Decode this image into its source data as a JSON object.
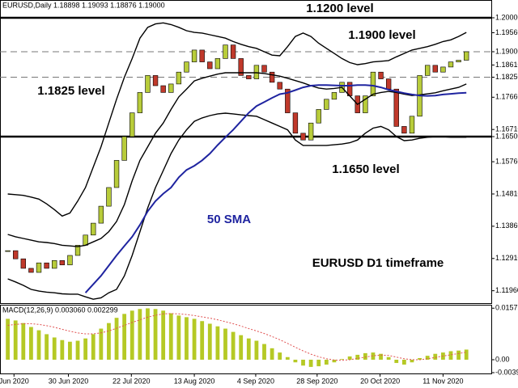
{
  "chart_data": [
    {
      "type": "candlestick",
      "header": "EURUSD,Daily  1.18898 1.19093 1.18876 1.19000",
      "xlim": [
        -1,
        62
      ],
      "xticks": [
        {
          "value": 0.8,
          "label": "Jun 2020"
        },
        {
          "value": 7.8,
          "label": "30 Jun 2020"
        },
        {
          "value": 15.9,
          "label": "22 Jul 2020"
        },
        {
          "value": 24,
          "label": "13 Aug 2020"
        },
        {
          "value": 31.9,
          "label": "4 Sep 2020"
        },
        {
          "value": 39.8,
          "label": "28 Sep 2020"
        },
        {
          "value": 47.9,
          "label": "20 Oct 2020"
        },
        {
          "value": 56,
          "label": "11 Nov 2020"
        }
      ],
      "ylim": [
        1.11595,
        1.20524
      ],
      "yticks": [
        {
          "value": 1.2,
          "label": "1.20000"
        },
        {
          "value": 1.1956,
          "label": "1.19560"
        },
        {
          "value": 1.19,
          "label": "1.19000"
        },
        {
          "value": 1.1861,
          "label": "1.18610"
        },
        {
          "value": 1.1825,
          "label": "1.18250"
        },
        {
          "value": 1.1766,
          "label": "1.17660"
        },
        {
          "value": 1.1671,
          "label": "1.16710"
        },
        {
          "value": 1.165,
          "label": "1.16500"
        },
        {
          "value": 1.1576,
          "label": "1.15760"
        },
        {
          "value": 1.1481,
          "label": "1.14810"
        },
        {
          "value": 1.1386,
          "label": "1.13860"
        },
        {
          "value": 1.1291,
          "label": "1.12910"
        },
        {
          "value": 1.1196,
          "label": "1.11960"
        }
      ],
      "close": [
        1.1314,
        1.129,
        1.1262,
        1.125,
        1.1278,
        1.1262,
        1.1285,
        1.1272,
        1.13,
        1.133,
        1.136,
        1.1395,
        1.1445,
        1.15,
        1.158,
        1.165,
        1.172,
        1.178,
        1.183,
        1.18,
        1.178,
        1.1805,
        1.184,
        1.187,
        1.1905,
        1.187,
        1.185,
        1.188,
        1.192,
        1.188,
        1.183,
        1.182,
        1.186,
        1.184,
        1.181,
        1.179,
        1.172,
        1.166,
        1.164,
        1.169,
        1.173,
        1.176,
        1.178,
        1.181,
        1.177,
        1.172,
        1.177,
        1.184,
        1.182,
        1.179,
        1.168,
        1.166,
        1.171,
        1.183,
        1.186,
        1.184,
        1.1855,
        1.187,
        1.1875,
        1.19
      ],
      "up_color": "#b8cc3a",
      "down_color": "#c0392b",
      "lines": [
        {
          "color": "#000000",
          "values": [
            1.1481,
            1.1479,
            1.1477,
            1.1472,
            1.1466,
            1.1452,
            1.1435,
            1.1416,
            1.1425,
            1.146,
            1.15,
            1.156,
            1.162,
            1.169,
            1.176,
            1.1825,
            1.188,
            1.194,
            1.1972,
            1.1982,
            1.1985,
            1.198,
            1.1972,
            1.1962,
            1.1957,
            1.1955,
            1.195,
            1.1945,
            1.194,
            1.193,
            1.1922,
            1.1915,
            1.191,
            1.19,
            1.189,
            1.1888,
            1.1915,
            1.1945,
            1.1955,
            1.1945,
            1.1925,
            1.191,
            1.1895,
            1.188,
            1.1868,
            1.1862,
            1.1865,
            1.187,
            1.1872,
            1.1874,
            1.1885,
            1.1895,
            1.1905,
            1.191,
            1.1915,
            1.1922,
            1.193,
            1.1935,
            1.1945,
            1.1957
          ]
        },
        {
          "color": "#000000",
          "values": [
            1.1362,
            1.1355,
            1.135,
            1.1345,
            1.134,
            1.1338,
            1.1335,
            1.133,
            1.1328,
            1.1326,
            1.133,
            1.134,
            1.135,
            1.137,
            1.14,
            1.145,
            1.152,
            1.158,
            1.162,
            1.166,
            1.169,
            1.173,
            1.1767,
            1.179,
            1.1814,
            1.1822,
            1.1828,
            1.1834,
            1.1838,
            1.1838,
            1.1838,
            1.1838,
            1.1838,
            1.1836,
            1.1832,
            1.1828,
            1.1822,
            1.1815,
            1.1808,
            1.18,
            1.1793,
            1.179,
            1.1792,
            1.1795,
            1.177,
            1.1745,
            1.176,
            1.1775,
            1.178,
            1.1783,
            1.178,
            1.1775,
            1.1771,
            1.1773,
            1.1776,
            1.1779,
            1.1785,
            1.179,
            1.1795,
            1.1805
          ]
        },
        {
          "color": "#000000",
          "values": [
            1.1231,
            1.1222,
            1.1212,
            1.12,
            1.1195,
            1.1192,
            1.119,
            1.1187,
            1.1186,
            1.1186,
            1.1178,
            1.1171,
            1.1175,
            1.119,
            1.12,
            1.124,
            1.13,
            1.137,
            1.144,
            1.15,
            1.155,
            1.16,
            1.164,
            1.167,
            1.1695,
            1.1705,
            1.1712,
            1.1717,
            1.1719,
            1.1717,
            1.1714,
            1.1712,
            1.171,
            1.17,
            1.169,
            1.168,
            1.167,
            1.164,
            1.1624,
            1.1624,
            1.1624,
            1.1624,
            1.1626,
            1.1628,
            1.1632,
            1.164,
            1.166,
            1.1675,
            1.168,
            1.167,
            1.165,
            1.1638,
            1.164,
            1.1645,
            1.1648,
            1.165,
            1.165,
            1.1648,
            1.1648,
            1.1648
          ]
        },
        {
          "color": "#1f24a0",
          "values": [
            null,
            null,
            null,
            null,
            null,
            null,
            null,
            null,
            null,
            null,
            1.119,
            1.1215,
            1.124,
            1.127,
            1.13,
            1.1328,
            1.1355,
            1.139,
            1.143,
            1.146,
            1.1482,
            1.15,
            1.153,
            1.1552,
            1.1564,
            1.158,
            1.16,
            1.1625,
            1.1648,
            1.167,
            1.1695,
            1.172,
            1.174,
            1.1752,
            1.1764,
            1.1775,
            1.1779,
            1.1787,
            1.1795,
            1.18,
            1.1802,
            1.1802,
            1.1801,
            1.18,
            1.18,
            1.1802,
            1.1802,
            1.18,
            1.1795,
            1.1788,
            1.1783,
            1.1778,
            1.1774,
            1.1771,
            1.177,
            1.1771,
            1.1774,
            1.1776,
            1.1778,
            1.1779
          ]
        }
      ],
      "levels": [
        {
          "value": 1.2,
          "dashed": false
        },
        {
          "value": 1.19,
          "dashed": true
        },
        {
          "value": 1.1825,
          "dashed": true
        },
        {
          "value": 1.165,
          "dashed": false
        }
      ],
      "annotations": [
        "1.1200 level",
        "1.1900 level",
        "1.1825 level",
        "1.1650 level",
        "50 SMA",
        "EURUSD D1 timeframe"
      ]
    },
    {
      "type": "bar",
      "header": "MACD(12,26,9) 0.003060 0.002299",
      "ylim": [
        -0.0042,
        0.0168
      ],
      "yticks": [
        {
          "value": 0.01575,
          "label": "0.01575"
        },
        {
          "value": 0,
          "label": "0.00"
        },
        {
          "value": -0.00395,
          "label": "-0.00395"
        }
      ],
      "color": "#b5c925",
      "values": [
        0.0125,
        0.012,
        0.0112,
        0.01,
        0.009,
        0.0078,
        0.0068,
        0.006,
        0.0055,
        0.0058,
        0.0065,
        0.0078,
        0.0095,
        0.0112,
        0.0128,
        0.014,
        0.015,
        0.0155,
        0.0157,
        0.0155,
        0.015,
        0.0142,
        0.0135,
        0.013,
        0.0125,
        0.0118,
        0.011,
        0.0102,
        0.0095,
        0.0085,
        0.0075,
        0.0065,
        0.0058,
        0.0048,
        0.0035,
        0.0022,
        0.0008,
        -0.0008,
        -0.0018,
        -0.0022,
        -0.002,
        -0.0015,
        -0.0008,
        0.0002,
        0.001,
        0.0015,
        0.002,
        0.0022,
        0.0018,
        0.0008,
        -0.001,
        -0.0015,
        -0.0008,
        0.0005,
        0.0012,
        0.0018,
        0.0022,
        0.0026,
        0.0028,
        0.0031
      ],
      "signal": {
        "color": "#e05050",
        "values": [
          0.0105,
          0.0108,
          0.011,
          0.011,
          0.0108,
          0.0104,
          0.0099,
          0.0093,
          0.0087,
          0.0082,
          0.0079,
          0.0079,
          0.0082,
          0.0088,
          0.0096,
          0.0105,
          0.0114,
          0.0122,
          0.013,
          0.0136,
          0.014,
          0.0141,
          0.014,
          0.0138,
          0.0135,
          0.0131,
          0.0127,
          0.0122,
          0.0116,
          0.011,
          0.0103,
          0.0095,
          0.0088,
          0.008,
          0.0071,
          0.0061,
          0.005,
          0.0038,
          0.0027,
          0.0017,
          0.0009,
          0.0003,
          -0.0001,
          -0.0002,
          0.0,
          0.0004,
          0.0008,
          0.0012,
          0.0014,
          0.0013,
          0.0008,
          0.0003,
          0.0,
          0.0,
          0.0003,
          0.0007,
          0.0011,
          0.0015,
          0.0019,
          0.0023
        ]
      }
    }
  ]
}
